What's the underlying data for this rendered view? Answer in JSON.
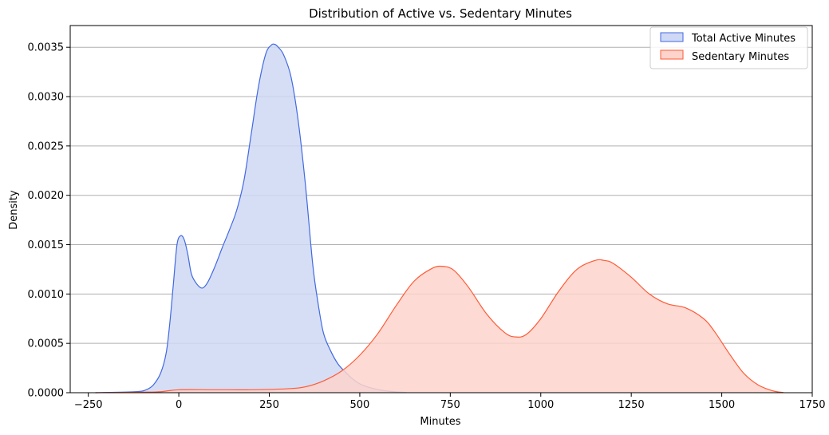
{
  "chart_data": {
    "type": "area",
    "title": "Distribution of Active vs. Sedentary Minutes",
    "xlabel": "Minutes",
    "ylabel": "Density",
    "xlim": [
      -300,
      1750
    ],
    "ylim": [
      0,
      0.00372
    ],
    "x_ticks": [
      -250,
      0,
      250,
      500,
      750,
      1000,
      1250,
      1500,
      1750
    ],
    "y_ticks": [
      0,
      0.0005,
      0.001,
      0.0015,
      0.002,
      0.0025,
      0.003,
      0.0035
    ],
    "x_tick_labels": [
      "−250",
      "0",
      "250",
      "500",
      "750",
      "1000",
      "1250",
      "1500",
      "1750"
    ],
    "y_tick_labels": [
      "0.0000",
      "0.0005",
      "0.0010",
      "0.0015",
      "0.0020",
      "0.0025",
      "0.0030",
      "0.0035"
    ],
    "grid": "horizontal",
    "legend_position": "top-right",
    "series": [
      {
        "name": "Total Active Minutes",
        "line_color": "#4169e1",
        "fill_color": "#cfd8f5",
        "x": [
          -230,
          -120,
          -90,
          -70,
          -50,
          -35,
          -25,
          -15,
          -5,
          5,
          15,
          25,
          35,
          50,
          65,
          80,
          100,
          120,
          140,
          160,
          180,
          200,
          220,
          240,
          255,
          265,
          275,
          290,
          310,
          330,
          350,
          370,
          385,
          400,
          420,
          440,
          460,
          480,
          500,
          520,
          540,
          560,
          580,
          600,
          630
        ],
        "values": [
          0,
          1e-05,
          3e-05,
          8e-05,
          0.0002,
          0.0004,
          0.0007,
          0.0011,
          0.0015,
          0.00159,
          0.00155,
          0.0014,
          0.0012,
          0.0011,
          0.00106,
          0.00112,
          0.00128,
          0.00147,
          0.00165,
          0.00185,
          0.00215,
          0.00262,
          0.0031,
          0.00343,
          0.00352,
          0.00353,
          0.0035,
          0.00342,
          0.0032,
          0.00275,
          0.0021,
          0.0013,
          0.0009,
          0.0006,
          0.00042,
          0.00029,
          0.00021,
          0.00014,
          9e-05,
          6e-05,
          4e-05,
          2.5e-05,
          1.5e-05,
          8e-06,
          2e-06
        ]
      },
      {
        "name": "Sedentary Minutes",
        "line_color": "#ff5a36",
        "fill_color": "#fdd3cb",
        "x": [
          -230,
          -100,
          -50,
          0,
          100,
          200,
          300,
          350,
          400,
          450,
          500,
          550,
          600,
          650,
          700,
          730,
          760,
          800,
          850,
          900,
          930,
          960,
          1000,
          1050,
          1100,
          1150,
          1175,
          1200,
          1250,
          1300,
          1350,
          1400,
          1450,
          1480,
          1520,
          1560,
          1600,
          1640,
          1670
        ],
        "values": [
          0,
          5e-06,
          1e-05,
          3e-05,
          3e-05,
          3e-05,
          4e-05,
          6e-05,
          0.00012,
          0.00022,
          0.00038,
          0.0006,
          0.00088,
          0.00113,
          0.00126,
          0.00128,
          0.00124,
          0.00107,
          0.0008,
          0.00061,
          0.000565,
          0.00059,
          0.00075,
          0.00103,
          0.00125,
          0.00134,
          0.00134,
          0.00131,
          0.00117,
          0.001,
          0.0009,
          0.00086,
          0.00075,
          0.00062,
          0.0004,
          0.0002,
          8e-05,
          2e-05,
          2e-06
        ]
      }
    ]
  }
}
